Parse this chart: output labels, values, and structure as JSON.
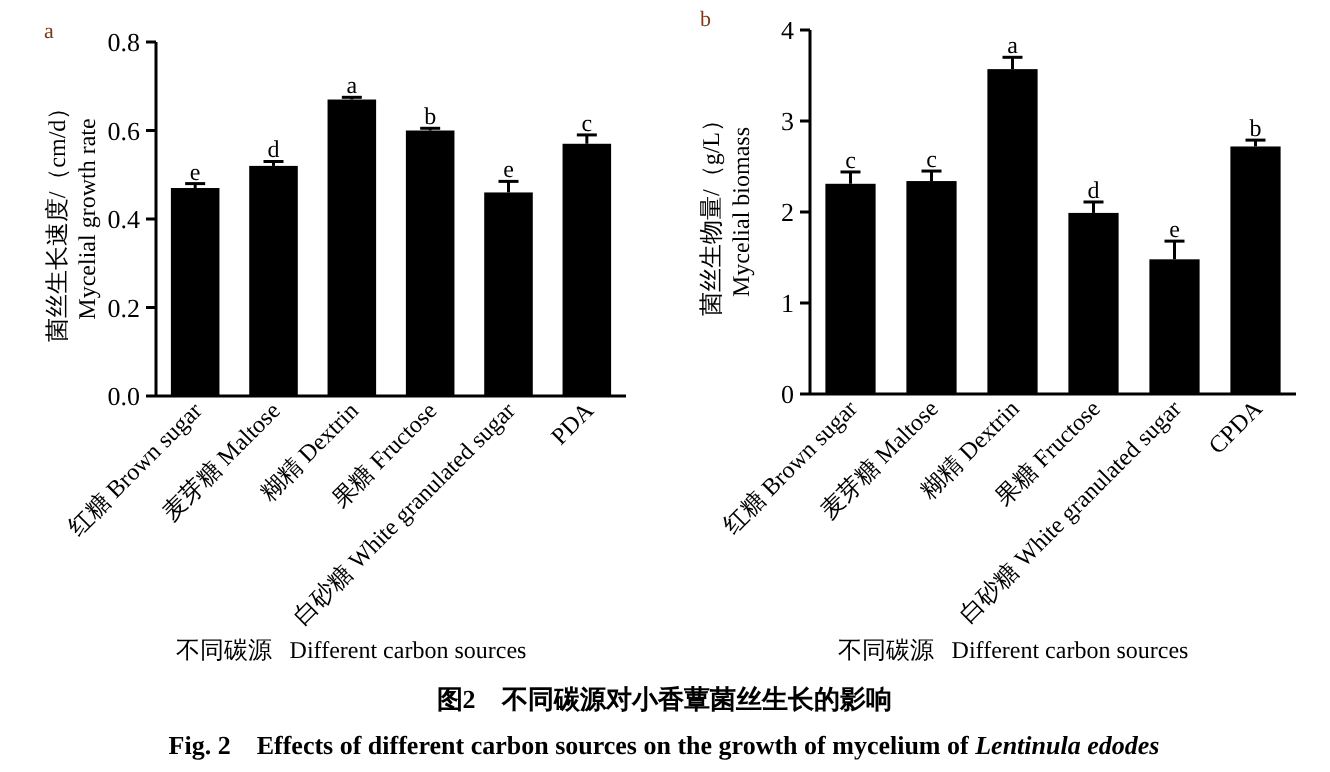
{
  "chart_data": [
    {
      "type": "bar",
      "title": "a",
      "ylabel": "菌丝生长速度/（cm/d）\nMycelial growth rate",
      "xlabel": "不同碳源   Different carbon sources",
      "categories": [
        "红糖 Brown sugar",
        "麦芽糖 Maltose",
        "糊精 Dextrin",
        "果糖 Fructose",
        "白砂糖 White granulated sugar",
        "PDA"
      ],
      "values": [
        0.47,
        0.52,
        0.67,
        0.6,
        0.46,
        0.57
      ],
      "errors": [
        0.01,
        0.01,
        0.005,
        0.005,
        0.025,
        0.02
      ],
      "color": "#000000",
      "ylim": [
        0,
        0.8
      ],
      "yticks": [
        {
          "value": 0,
          "label": "0.0"
        },
        0.2,
        0.4,
        0.6,
        0.8
      ],
      "grid": false,
      "annotations": [
        {
          "text": "e",
          "x": "红糖 Brown sugar",
          "y": 0.48
        },
        {
          "text": "d",
          "x": "麦芽糖 Maltose",
          "y": 0.53
        },
        {
          "text": "a",
          "x": "糊精 Dextrin",
          "y": 0.675
        },
        {
          "text": "b",
          "x": "果糖 Fructose",
          "y": 0.605
        },
        {
          "text": "e",
          "x": "白砂糖 White granulated sugar",
          "y": 0.485
        },
        {
          "text": "c",
          "x": "PDA",
          "y": 0.59
        },
        "图2　不同碳源对小香蕈菌丝生长的影响",
        "Fig. 2    Effects of different carbon sources on the growth of mycelium of *Lentinula edodes*"
      ]
    },
    {
      "type": "bar",
      "title": "b",
      "ylabel": "菌丝生物量/（g/L）\nMycelial biomass",
      "xlabel": "不同碳源   Different carbon sources",
      "categories": [
        "红糖 Brown sugar",
        "麦芽糖 Maltose",
        "糊精 Dextrin",
        "果糖 Fructose",
        "白砂糖 White granulated sugar",
        "CPDA"
      ],
      "values": [
        2.31,
        2.34,
        3.57,
        1.99,
        1.48,
        2.72
      ],
      "errors": [
        0.13,
        0.11,
        0.13,
        0.12,
        0.2,
        0.07
      ],
      "color": "#000000",
      "ylim": [
        0,
        4
      ],
      "yticks": [
        0,
        1,
        2,
        3,
        4
      ],
      "grid": false,
      "annotations": [
        {
          "text": "c",
          "x": "红糖 Brown sugar",
          "y": 2.44
        },
        {
          "text": "c",
          "x": "麦芽糖 Maltose",
          "y": 2.45
        },
        {
          "text": "a",
          "x": "糊精 Dextrin",
          "y": 3.7
        },
        {
          "text": "d",
          "x": "果糖 Fructose",
          "y": 2.11
        },
        {
          "text": "e",
          "x": "白砂糖 White granulated sugar",
          "y": 1.68
        },
        {
          "text": "b",
          "x": "CPDA",
          "y": 2.79
        }
      ]
    }
  ]
}
